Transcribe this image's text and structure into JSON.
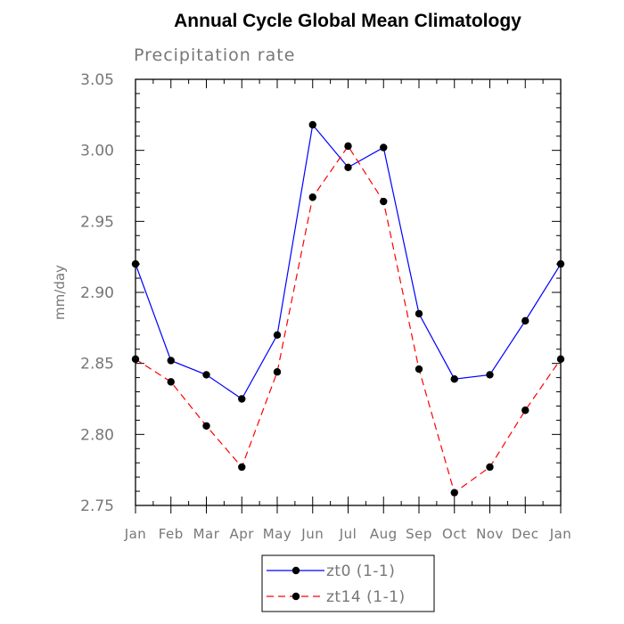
{
  "chart_data": {
    "type": "line",
    "title": "Annual Cycle Global Mean Climatology",
    "subtitle": "Precipitation rate",
    "xlabel": "",
    "ylabel": "mm/day",
    "categories": [
      "Jan",
      "Feb",
      "Mar",
      "Apr",
      "May",
      "Jun",
      "Jul",
      "Aug",
      "Sep",
      "Oct",
      "Nov",
      "Dec",
      "Jan"
    ],
    "ylim": [
      2.75,
      3.05
    ],
    "yticks": [
      "2.75",
      "2.80",
      "2.85",
      "2.90",
      "2.95",
      "3.00",
      "3.05"
    ],
    "grid": false,
    "legend_position": "bottom-center",
    "series": [
      {
        "name": "zt0 (1-1)",
        "color": "#0000ff",
        "style": "solid",
        "values": [
          2.92,
          2.852,
          2.842,
          2.825,
          2.87,
          3.018,
          2.988,
          3.002,
          2.885,
          2.839,
          2.842,
          2.88,
          2.92
        ]
      },
      {
        "name": "zt14 (1-1)",
        "color": "#ff0000",
        "style": "dashed",
        "values": [
          2.853,
          2.837,
          2.806,
          2.777,
          2.844,
          2.967,
          3.003,
          2.964,
          2.846,
          2.759,
          2.777,
          2.817,
          2.853
        ]
      }
    ]
  }
}
